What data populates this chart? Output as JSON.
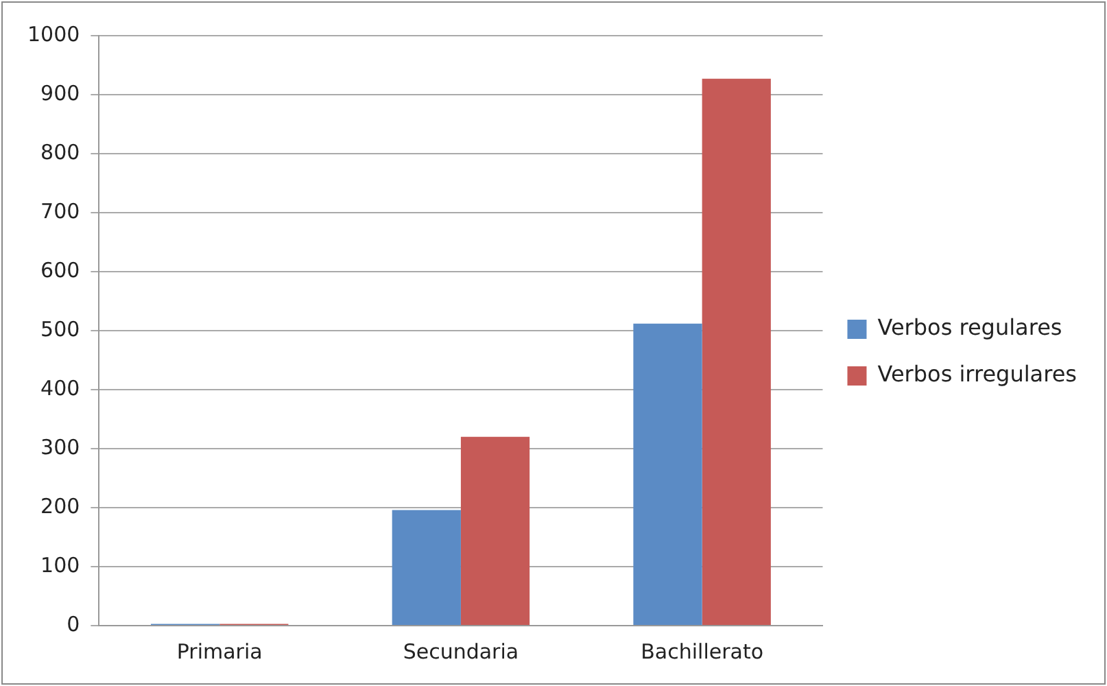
{
  "chart_data": {
    "type": "bar",
    "categories": [
      "Primaria",
      "Secundaria",
      "Bachillerato"
    ],
    "series": [
      {
        "name": "Verbos regulares",
        "color": "#5b8bc5",
        "values": [
          3,
          196,
          512
        ]
      },
      {
        "name": "Verbos irregulares",
        "color": "#c65a57",
        "values": [
          3,
          320,
          927
        ]
      }
    ],
    "ylim": [
      0,
      1000
    ],
    "yticks": [
      0,
      100,
      200,
      300,
      400,
      500,
      600,
      700,
      800,
      900,
      1000
    ],
    "grid": "y",
    "legend": "right"
  }
}
